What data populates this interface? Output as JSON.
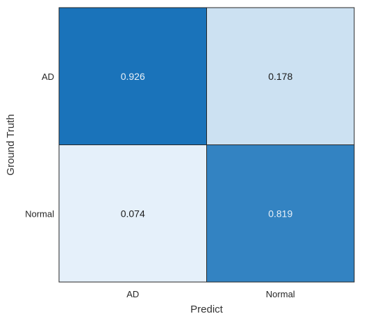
{
  "chart_data": {
    "type": "heatmap",
    "xlabel": "Predict",
    "ylabel": "Ground Truth",
    "x_categories": [
      "AD",
      "Normal"
    ],
    "y_categories": [
      "AD",
      "Normal"
    ],
    "values": [
      [
        0.926,
        0.178
      ],
      [
        0.074,
        0.819
      ]
    ],
    "value_labels": [
      [
        "0.926",
        "0.178"
      ],
      [
        "0.074",
        "0.819"
      ]
    ],
    "color_scale": {
      "low": "#f7fbff",
      "high": "#0868b5"
    },
    "label_colors": {
      "dark": "#1a1a1a",
      "light": "#e8f0f8"
    }
  }
}
